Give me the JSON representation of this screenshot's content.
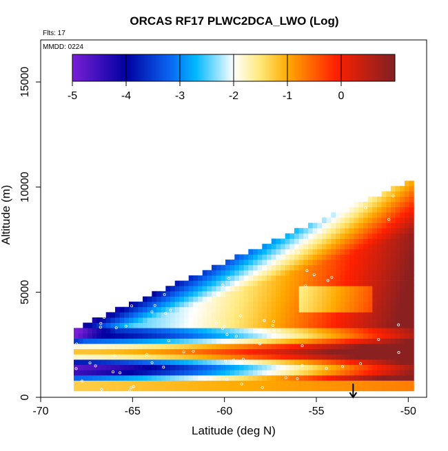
{
  "chart_data": {
    "type": "heatmap",
    "title": "ORCAS RF17 PLWC2DCA_LWO (Log)",
    "flights_note": "Flts: 17",
    "mmdd_note": "MMDD: 0224",
    "xlabel": "Latitude (deg N)",
    "ylabel": "Altitude (m)",
    "xlim": [
      -70,
      -49
    ],
    "ylim": [
      0,
      17000
    ],
    "x_ticks": [
      -70,
      -65,
      -60,
      -55,
      -50
    ],
    "x_tick_labels": [
      "-70",
      "-65",
      "-60",
      "-55",
      "-50"
    ],
    "y_ticks": [
      0,
      5000,
      10000,
      15000
    ],
    "y_tick_labels": [
      "0",
      "5000",
      "10000",
      "15000"
    ],
    "colorbar": {
      "ticks": [
        -5,
        -4,
        -3,
        -2,
        -1,
        0
      ],
      "tick_labels": [
        "-5",
        "-4",
        "-3",
        "-2",
        "-1",
        "0"
      ],
      "range": [
        -5,
        1
      ],
      "colors": [
        "#7a1fd6",
        "#0000a0",
        "#0a64f0",
        "#00b8ff",
        "#ffffff",
        "#ffe878",
        "#ffaa00",
        "#ff2000",
        "#8b2020"
      ]
    },
    "field_extent": {
      "lat_min": -68.2,
      "lat_max": -49.7,
      "base_altitude_m": 300,
      "top_altitude_south_m": 3200,
      "top_altitude_north_m": 10300
    },
    "arrow_marker_latitude": -53
  }
}
